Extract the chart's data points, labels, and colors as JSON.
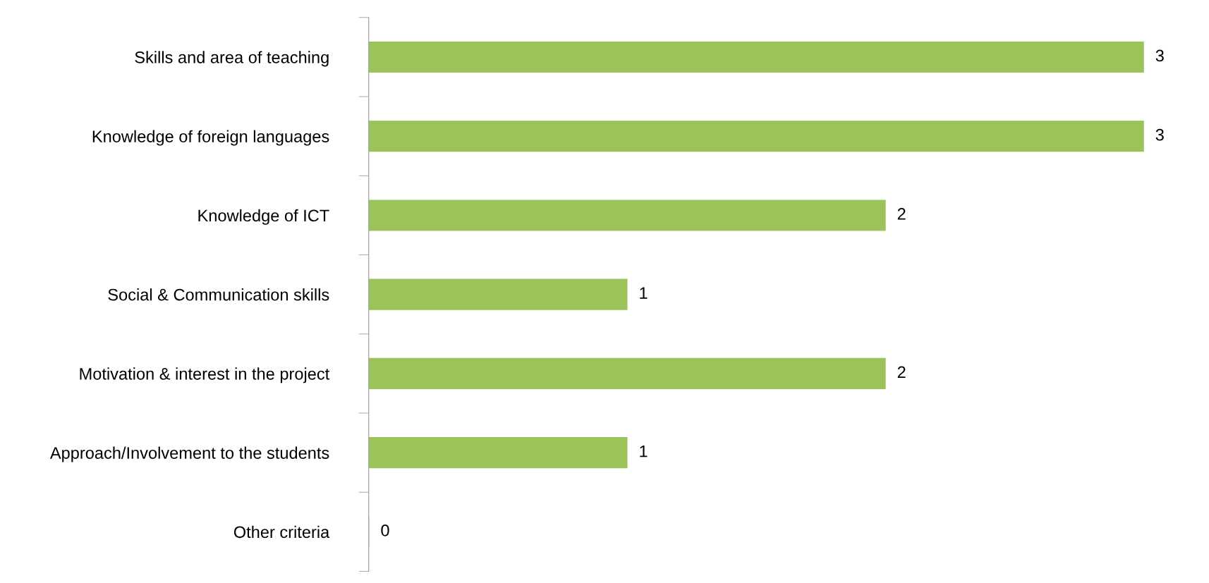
{
  "chart_data": {
    "type": "bar",
    "orientation": "horizontal",
    "categories": [
      "Skills and area of teaching",
      "Knowledge of foreign languages",
      "Knowledge of ICT",
      "Social & Communication skills",
      "Motivation & interest in the project",
      "Approach/Involvement to the students",
      "Other criteria"
    ],
    "values": [
      3,
      3,
      2,
      1,
      2,
      1,
      0
    ],
    "color": "#9bc35a",
    "data_labels": true,
    "grid": false,
    "legend": false
  }
}
